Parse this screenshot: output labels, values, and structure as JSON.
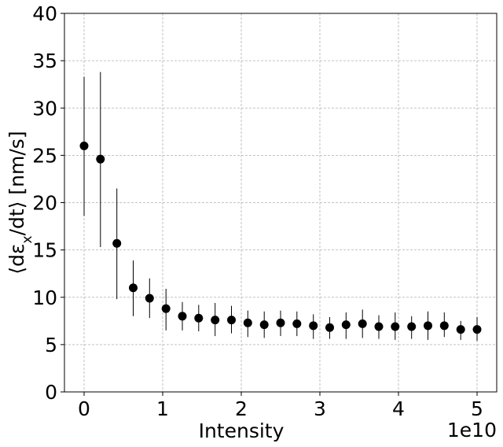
{
  "chart_data": {
    "type": "scatter",
    "title": "",
    "xlabel": "Intensity",
    "ylabel": "⟨dε",
    "ylabel_sub": "x",
    "ylabel_tail": "/dt⟩ [nm/s]",
    "x_offset_label": "1e10",
    "x_scale": 10000000000.0,
    "xlim": [
      -0.25,
      5.25
    ],
    "ylim": [
      0,
      40
    ],
    "x_ticks": [
      0,
      1,
      2,
      3,
      4,
      5
    ],
    "x_tick_labels": [
      "0",
      "1",
      "2",
      "3",
      "4",
      "5"
    ],
    "y_ticks": [
      0,
      5,
      10,
      15,
      20,
      25,
      30,
      35,
      40
    ],
    "y_tick_labels": [
      "0",
      "5",
      "10",
      "15",
      "20",
      "25",
      "30",
      "35",
      "40"
    ],
    "grid": true,
    "marker_color": "#000000",
    "series": [
      {
        "x": [
          0,
          0.208,
          0.417,
          0.625,
          0.833,
          1.042,
          1.25,
          1.458,
          1.667,
          1.875,
          2.083,
          2.292,
          2.5,
          2.708,
          2.917,
          3.125,
          3.333,
          3.542,
          3.75,
          3.958,
          4.167,
          4.375,
          4.583,
          4.792,
          5.0
        ],
        "y": [
          26.0,
          24.6,
          15.7,
          11.0,
          9.9,
          8.8,
          8.0,
          7.8,
          7.6,
          7.6,
          7.3,
          7.1,
          7.3,
          7.2,
          7.0,
          6.8,
          7.1,
          7.2,
          6.9,
          6.9,
          6.9,
          7.0,
          7.0,
          6.6,
          6.6
        ],
        "yerr_low": [
          18.6,
          15.3,
          9.8,
          8.0,
          7.8,
          6.5,
          6.5,
          6.4,
          5.9,
          6.2,
          5.8,
          5.7,
          5.9,
          5.9,
          5.6,
          5.6,
          5.6,
          5.7,
          5.6,
          5.5,
          5.6,
          5.5,
          5.8,
          5.5,
          5.4
        ],
        "yerr_high": [
          33.3,
          33.8,
          21.5,
          13.9,
          12.0,
          10.9,
          9.5,
          9.2,
          9.4,
          9.1,
          8.6,
          8.5,
          8.6,
          8.5,
          8.2,
          7.9,
          8.4,
          8.7,
          8.1,
          8.4,
          8.0,
          8.5,
          8.4,
          7.5,
          7.9
        ]
      }
    ]
  }
}
